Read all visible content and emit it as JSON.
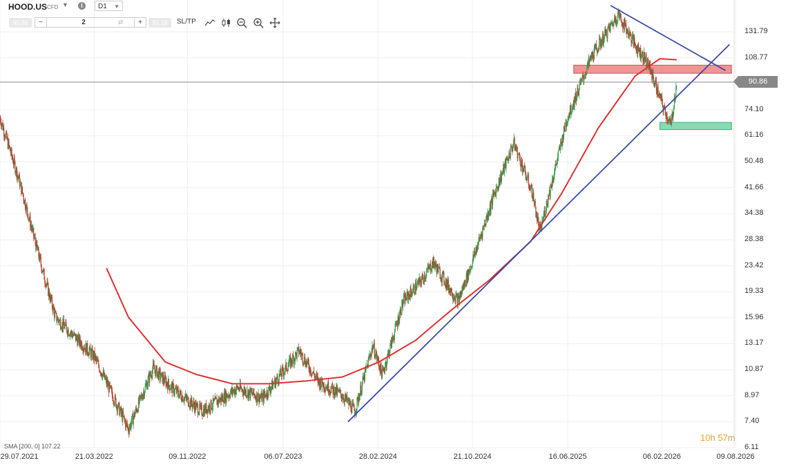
{
  "toolbar": {
    "symbol": "HOOD.US",
    "instrument_type": "CFD",
    "timeframe": "D1",
    "sell_price": "90.86",
    "buy_price": "91.18",
    "volume": "2",
    "sltp_label": "SL/TP",
    "icons": [
      "chart-type-icon",
      "candlestick-icon",
      "zoom-out-icon",
      "zoom-in-icon",
      "crosshair-icon"
    ]
  },
  "indicator_label": "SMA [200, 0] 107.22",
  "timer": {
    "hours": "10",
    "h": "h",
    "minutes": "57",
    "m": "m"
  },
  "current_price": "90.86",
  "colors": {
    "up": "#2e9e4e",
    "down": "#c0392b",
    "sma": "#e03030",
    "trend": "#3a4aa8",
    "resistance_zone": "#e57373",
    "support_zone": "#5fcf9a",
    "price_line": "#888888"
  },
  "chart_data": {
    "type": "candlestick",
    "title": "",
    "y_scale": "log",
    "y_ticks": [
      "131.79",
      "108.77",
      "90.86",
      "74.10",
      "61.16",
      "50.48",
      "41.66",
      "34.38",
      "28.38",
      "23.42",
      "19.33",
      "15.96",
      "13.17",
      "10.87",
      "8.97",
      "7.40",
      "6.11"
    ],
    "x_ticks": [
      "29.07.2021",
      "21.03.2022",
      "09.11.2022",
      "06.07.2023",
      "28.02.2024",
      "21.10.2024",
      "16.06.2025",
      "06.02.2026",
      "09.08.2026"
    ],
    "price_path": [
      [
        "29.07.2021",
        70
      ],
      [
        "15.09.2021",
        44
      ],
      [
        "15.11.2021",
        22
      ],
      [
        "15.12.2021",
        16
      ],
      [
        "21.03.2022",
        12
      ],
      [
        "15.05.2022",
        8.5
      ],
      [
        "15.06.2022",
        7.0
      ],
      [
        "15.08.2022",
        11
      ],
      [
        "01.10.2022",
        9.5
      ],
      [
        "15.12.2022",
        8.0
      ],
      [
        "15.03.2023",
        9.5
      ],
      [
        "15.05.2023",
        8.8
      ],
      [
        "15.08.2023",
        12.5
      ],
      [
        "01.10.2023",
        10.0
      ],
      [
        "01.12.2023",
        9.0
      ],
      [
        "01.01.2024",
        8.0
      ],
      [
        "15.02.2024",
        13.0
      ],
      [
        "10.03.2024",
        10.5
      ],
      [
        "01.05.2024",
        18.0
      ],
      [
        "15.06.2024",
        21.0
      ],
      [
        "15.07.2024",
        24.0
      ],
      [
        "15.09.2024",
        18.0
      ],
      [
        "15.10.2024",
        23.0
      ],
      [
        "15.12.2024",
        40.0
      ],
      [
        "01.02.2025",
        58.0
      ],
      [
        "20.03.2025",
        40.0
      ],
      [
        "07.04.2025",
        30.0
      ],
      [
        "15.06.2025",
        70.0
      ],
      [
        "15.08.2025",
        110.0
      ],
      [
        "20.10.2025",
        150.0
      ],
      [
        "01.12.2025",
        120.0
      ],
      [
        "01.01.2026",
        105.0
      ],
      [
        "20.01.2026",
        90.0
      ],
      [
        "10.02.2026",
        75.0
      ],
      [
        "01.03.2026",
        66.0
      ],
      [
        "15.03.2026",
        90.86
      ]
    ],
    "sma_200": [
      [
        "21.04.2022",
        23.0
      ],
      [
        "15.06.2022",
        16.0
      ],
      [
        "15.09.2022",
        11.5
      ],
      [
        "01.12.2022",
        10.5
      ],
      [
        "01.03.2023",
        9.8
      ],
      [
        "01.06.2023",
        9.8
      ],
      [
        "01.09.2023",
        10.0
      ],
      [
        "01.12.2023",
        10.3
      ],
      [
        "01.03.2024",
        11.5
      ],
      [
        "01.06.2024",
        13.5
      ],
      [
        "01.09.2024",
        17.0
      ],
      [
        "01.12.2024",
        21.0
      ],
      [
        "15.03.2025",
        28.0
      ],
      [
        "01.06.2025",
        40.0
      ],
      [
        "01.09.2025",
        65.0
      ],
      [
        "01.12.2025",
        95.0
      ],
      [
        "01.02.2026",
        108.0
      ],
      [
        "15.03.2026",
        107.22
      ]
    ],
    "trendlines": [
      {
        "name": "support",
        "from": [
          "15.12.2023",
          7.4
        ],
        "to": [
          "25.07.2026",
          120.0
        ]
      },
      {
        "name": "resistance",
        "from": [
          "01.10.2025",
          160.0
        ],
        "to": [
          "15.07.2026",
          99.0
        ]
      }
    ],
    "zones": [
      {
        "name": "resistance",
        "from": "01.07.2025",
        "to": "30.07.2026",
        "low": 97.0,
        "high": 103.0
      },
      {
        "name": "support",
        "from": "01.02.2026",
        "to": "30.07.2026",
        "low": 64.0,
        "high": 67.5
      }
    ],
    "current_price": 90.86
  }
}
